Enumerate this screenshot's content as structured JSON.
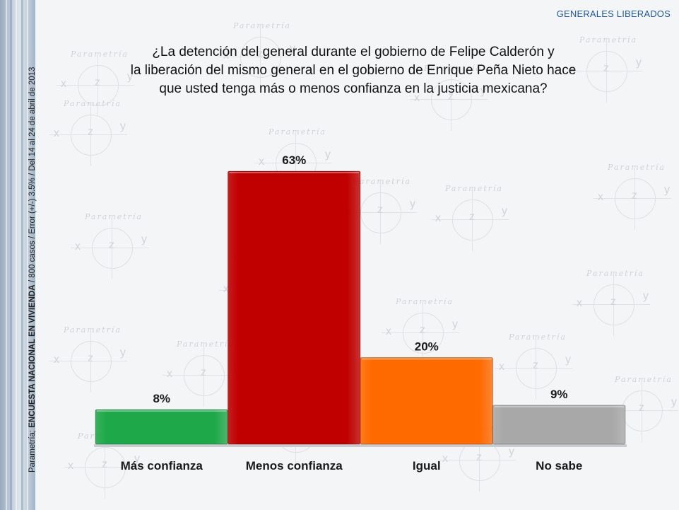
{
  "header": {
    "corner_label": "GENERALES LIBERADOS",
    "title_lines": [
      "¿La detención del general durante el gobierno de Felipe Calderón y",
      "la liberación del mismo general en el gobierno de Enrique Peña Nieto hace",
      "que usted tenga más o menos confianza en la justicia mexicana?"
    ]
  },
  "source_note": {
    "prefix": "Parametría; ",
    "bold": "ENCUESTA NACIONAL EN VIVIENDA",
    "suffix": " / 800 casos / Error (+/-) 3.5% / Del 14 al 24  de abril de 2013"
  },
  "watermark": {
    "brand": "Parametría",
    "glyph_x": "x",
    "glyph_y": "y",
    "glyph_z": "z"
  },
  "chart_data": {
    "type": "bar",
    "categories": [
      "Más confianza",
      "Menos confianza",
      "Igual",
      "No sabe"
    ],
    "values": [
      8,
      63,
      20,
      9
    ],
    "value_labels": [
      "8%",
      "63%",
      "20%",
      "9%"
    ],
    "colors": [
      "#1fa84a",
      "#c00000",
      "#ff6a00",
      "#a8a8a8"
    ],
    "title": "",
    "xlabel": "",
    "ylabel": "",
    "ylim": [
      0,
      63
    ],
    "grid": false,
    "legend": "none"
  }
}
